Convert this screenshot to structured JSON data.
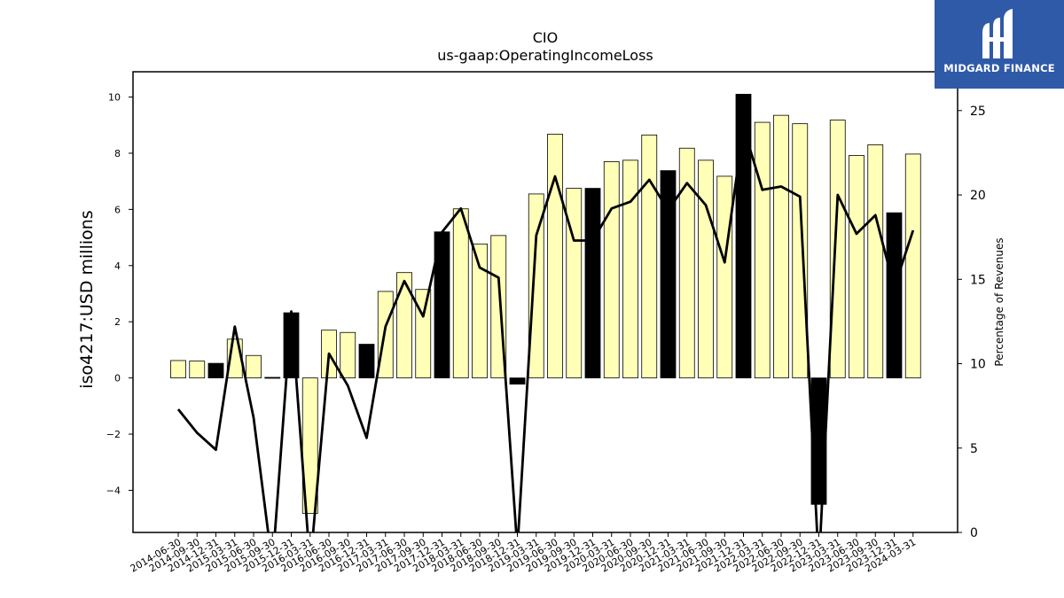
{
  "chart_data": {
    "type": "bar",
    "title": "CIO",
    "subtitle": "us-gaap:OperatingIncomeLoss",
    "ylabel": "iso4217:USD  millions",
    "y2label": "Percentage of Revenues",
    "ylim": [
      -5.5,
      10.9
    ],
    "y2lim": [
      0,
      27.3
    ],
    "yticks": [
      -4,
      -2,
      0,
      2,
      4,
      6,
      8,
      10
    ],
    "y2ticks": [
      0,
      5,
      10,
      15,
      20,
      25
    ],
    "categories": [
      "2014-06-30",
      "2014-09-30",
      "2014-12-31",
      "2015-03-31",
      "2015-06-30",
      "2015-09-30",
      "2015-12-31",
      "2016-03-31",
      "2016-06-30",
      "2016-09-30",
      "2016-12-31",
      "2017-03-31",
      "2017-06-30",
      "2017-09-30",
      "2017-12-31",
      "2018-03-31",
      "2018-06-30",
      "2018-09-30",
      "2018-12-31",
      "2019-03-31",
      "2019-06-30",
      "2019-09-30",
      "2019-12-31",
      "2020-03-31",
      "2020-06-30",
      "2020-09-30",
      "2020-12-31",
      "2021-03-31",
      "2021-06-30",
      "2021-09-30",
      "2021-12-31",
      "2022-03-31",
      "2022-06-30",
      "2022-09-30",
      "2022-12-31",
      "2023-03-31",
      "2023-06-30",
      "2023-09-30",
      "2023-12-31",
      "2024-03-31"
    ],
    "series": [
      {
        "values": [
          0.62,
          0.6,
          0.52,
          1.38,
          0.8,
          0.02,
          2.32,
          -4.82,
          1.7,
          1.62,
          1.2,
          3.08,
          3.75,
          3.15,
          5.2,
          6.02,
          4.77,
          5.07,
          -0.22,
          6.55,
          8.68,
          6.75,
          6.75,
          7.7,
          7.75,
          8.65,
          7.38,
          8.18,
          7.75,
          7.18,
          10.1,
          9.1,
          9.35,
          9.05,
          -4.5,
          9.18,
          7.92,
          8.3,
          5.88,
          7.97
        ],
        "highlight": [
          false,
          false,
          true,
          false,
          false,
          true,
          true,
          false,
          false,
          false,
          true,
          false,
          false,
          false,
          true,
          false,
          false,
          false,
          true,
          false,
          false,
          false,
          true,
          false,
          false,
          false,
          true,
          false,
          false,
          false,
          true,
          false,
          false,
          false,
          true,
          false,
          false,
          false,
          true,
          false
        ]
      },
      {
        "axis": "right",
        "values": [
          7.3,
          5.9,
          4.9,
          12.2,
          6.8,
          -2,
          13.1,
          -2,
          10.6,
          8.7,
          5.6,
          12.2,
          14.9,
          12.8,
          17.8,
          19.2,
          15.7,
          15.1,
          -1,
          17.6,
          21.1,
          17.3,
          17.3,
          19.2,
          19.6,
          20.9,
          19.1,
          20.7,
          19.4,
          16.0,
          24.0,
          20.3,
          20.5,
          19.9,
          -2,
          20.0,
          17.7,
          18.8,
          14.5,
          17.9
        ]
      }
    ],
    "colors": {
      "bar": "#ffffb8",
      "bar_highlight": "#000000",
      "bar_edge": "#000000",
      "line": "#000000"
    }
  },
  "logo": {
    "text": "MIDGARD FINANCE",
    "background": "#2f5aa8",
    "foreground": "#ffffff"
  }
}
